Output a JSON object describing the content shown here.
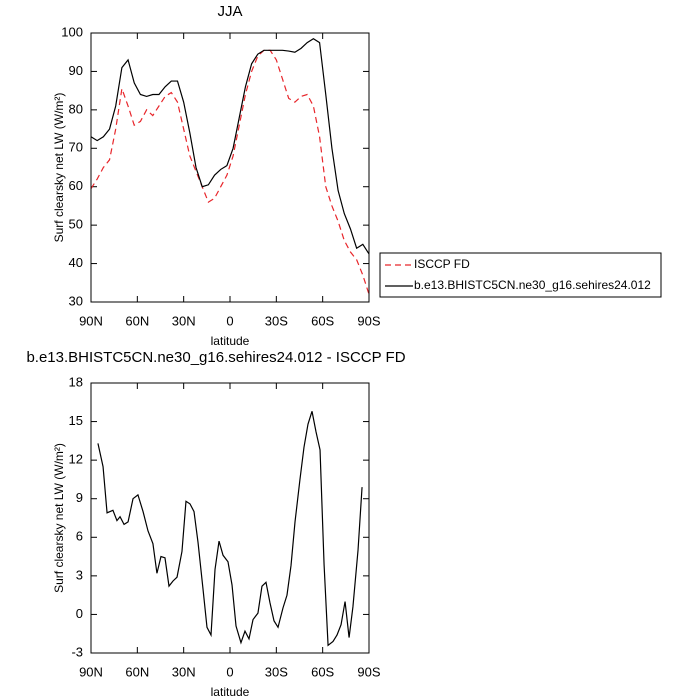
{
  "chart_data": [
    {
      "type": "line",
      "title": "JJA",
      "ylabel": "Surf clearsky net LW (W/m²)",
      "xlabel": "latitude",
      "x": [
        90,
        86,
        82,
        78,
        74,
        70,
        66,
        62,
        58,
        54,
        50,
        46,
        42,
        38,
        34,
        30,
        26,
        22,
        18,
        14,
        10,
        6,
        2,
        -2,
        -6,
        -10,
        -14,
        -18,
        -22,
        -26,
        -30,
        -34,
        -38,
        -42,
        -46,
        -50,
        -54,
        -58,
        -62,
        -66,
        -70,
        -74,
        -78,
        -82,
        -86,
        -90
      ],
      "series": [
        {
          "name": "ISCCP FD",
          "color": "#e8262b",
          "line_style": "dashed",
          "values": [
            59.5,
            62,
            65,
            67,
            75,
            85.5,
            81,
            76,
            77,
            80,
            78.5,
            81,
            83.5,
            84.5,
            82,
            75,
            68,
            64,
            60,
            56,
            57,
            60,
            63,
            68,
            76,
            84,
            90,
            94,
            95.5,
            95.5,
            93,
            88,
            83,
            82,
            83.5,
            84,
            81,
            73,
            60,
            55,
            51,
            46,
            43,
            41,
            37,
            32
          ]
        },
        {
          "name": "b.e13.BHISTC5CN.ne30_g16.sehires24.012",
          "color": "#000000",
          "line_style": "solid",
          "values": [
            73,
            72,
            73,
            75,
            81,
            91,
            93,
            87,
            84,
            83.5,
            84,
            84,
            86,
            87.5,
            87.5,
            82,
            74,
            65,
            60,
            60.5,
            63,
            64.5,
            65.5,
            70,
            78,
            86,
            92,
            94.5,
            95.5,
            95.5,
            95.5,
            95.5,
            95.3,
            95,
            96,
            97.5,
            98.5,
            97.5,
            84,
            70,
            59,
            53,
            49,
            44,
            45,
            42.5
          ]
        }
      ],
      "xlim": [
        90,
        -90
      ],
      "xticks": [
        {
          "value": 90,
          "label": "90N"
        },
        {
          "value": 60,
          "label": "60N"
        },
        {
          "value": 30,
          "label": "30N"
        },
        0,
        {
          "value": -30,
          "label": "30S"
        },
        {
          "value": -60,
          "label": "60S"
        },
        {
          "value": -90,
          "label": "90S"
        }
      ],
      "ylim": [
        30,
        100
      ],
      "yticks": [
        30,
        40,
        50,
        60,
        70,
        80,
        90,
        100
      ]
    },
    {
      "type": "line",
      "title": "b.e13.BHISTC5CN.ne30_g16.sehires24.012 - ISCCP FD",
      "ylabel": "Surf clearsky net LW (W/m²)",
      "xlabel": "latitude",
      "x": [
        85.5,
        82.2,
        79.6,
        75.8,
        73.2,
        71.2,
        68.6,
        66.0,
        62.8,
        59.6,
        56.3,
        53.1,
        49.9,
        47.3,
        44.7,
        42.1,
        39.5,
        36.9,
        34.3,
        31.1,
        28.5,
        25.9,
        23.3,
        20.7,
        17.5,
        14.9,
        12.3,
        9.7,
        7.1,
        4.5,
        1.3,
        -1.3,
        -3.9,
        -7.1,
        -9.7,
        -12.3,
        -14.9,
        -18.1,
        -20.7,
        -23.3,
        -25.9,
        -28.5,
        -31.1,
        -34.3,
        -36.9,
        -39.5,
        -42.1,
        -45.3,
        -47.9,
        -50.5,
        -53.1,
        -55.7,
        -58.3,
        -60.9,
        -63.5,
        -66.7,
        -69.3,
        -71.9,
        -74.5,
        -77.1,
        -79.6,
        -82.9,
        -85.5
      ],
      "values": [
        13.3,
        11.5,
        7.9,
        8.1,
        7.3,
        7.6,
        7.0,
        7.2,
        9.0,
        9.3,
        8.0,
        6.5,
        5.5,
        3.2,
        4.5,
        4.4,
        2.2,
        2.6,
        2.9,
        4.9,
        8.8,
        8.6,
        8.0,
        5.6,
        2.0,
        -1.0,
        -1.6,
        3.5,
        5.7,
        4.6,
        4.1,
        2.3,
        -0.9,
        -2.2,
        -1.3,
        -1.9,
        -0.4,
        0.1,
        2.2,
        2.5,
        0.9,
        -0.5,
        -1.0,
        0.5,
        1.5,
        3.8,
        7.2,
        10.5,
        13.0,
        14.8,
        15.8,
        14.2,
        12.8,
        3.9,
        -2.4,
        -2.1,
        -1.6,
        -0.8,
        1.0,
        -1.8,
        0.6,
        5.0,
        9.9
      ],
      "color": "#000000",
      "xlim": [
        90,
        -90
      ],
      "xticks": [
        {
          "value": 90,
          "label": "90N"
        },
        {
          "value": 60,
          "label": "60N"
        },
        {
          "value": 30,
          "label": "30N"
        },
        0,
        {
          "value": -30,
          "label": "30S"
        },
        {
          "value": -60,
          "label": "60S"
        },
        {
          "value": -90,
          "label": "90S"
        }
      ],
      "ylim": [
        -3,
        18
      ],
      "yticks": [
        -3,
        0,
        3,
        6,
        9,
        12,
        15,
        18
      ]
    }
  ]
}
